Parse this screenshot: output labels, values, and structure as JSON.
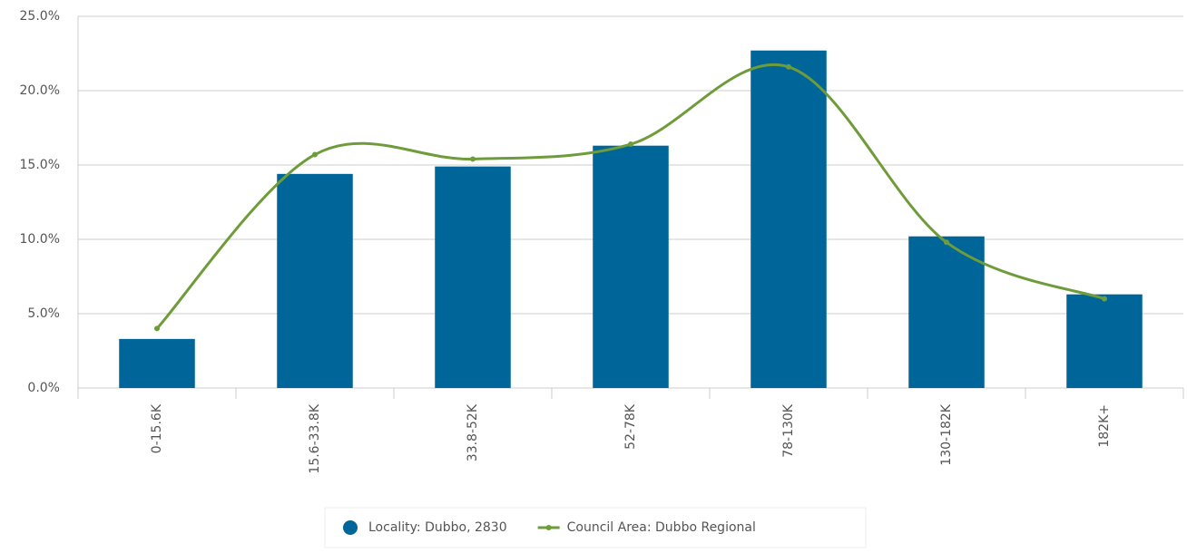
{
  "chart_data": {
    "type": "bar_line",
    "categories": [
      "0-15.6K",
      "15.6-33.8K",
      "33.8-52K",
      "52-78K",
      "78-130K",
      "130-182K",
      "182K+"
    ],
    "series": [
      {
        "name": "Locality: Dubbo, 2830",
        "type": "bar",
        "color": "#006699",
        "values": [
          3.3,
          14.4,
          14.9,
          16.3,
          22.7,
          10.2,
          6.3
        ]
      },
      {
        "name": "Council Area: Dubbo Regional",
        "type": "line",
        "color": "#6f9c3a",
        "values": [
          4.0,
          15.7,
          15.4,
          16.4,
          21.6,
          9.8,
          6.0
        ]
      }
    ],
    "ylim": [
      0,
      25
    ],
    "yticks": [
      {
        "value": 0,
        "label": "0.0%"
      },
      {
        "value": 5,
        "label": "5.0%"
      },
      {
        "value": 10,
        "label": "10.0%"
      },
      {
        "value": 15,
        "label": "15.0%"
      },
      {
        "value": 20,
        "label": "20.0%"
      },
      {
        "value": 25,
        "label": "25.0%"
      }
    ],
    "grid": true,
    "legend": "bottom"
  }
}
